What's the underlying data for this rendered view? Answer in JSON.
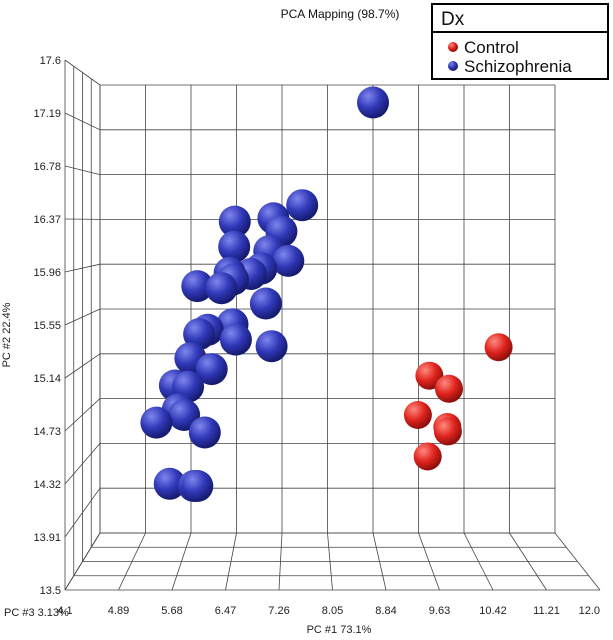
{
  "chart_data": {
    "type": "scatter",
    "title": "PCA Mapping (98.7%)",
    "xlabel": "PC #1 73.1%",
    "ylabel": "PC #2 22.4%",
    "zlabel": "PC #3 3.13%",
    "xlim": [
      4.1,
      12.0
    ],
    "ylim": [
      13.5,
      17.6
    ],
    "x_ticks": [
      "4.1",
      "4.89",
      "5.68",
      "6.47",
      "7.26",
      "8.05",
      "8.84",
      "9.63",
      "10.42",
      "11.21",
      "12.0"
    ],
    "y_ticks": [
      "13.5",
      "13.91",
      "14.32",
      "14.73",
      "15.14",
      "15.55",
      "15.96",
      "16.37",
      "16.78",
      "17.19",
      "17.6"
    ],
    "legend": {
      "title": "Dx",
      "position": "top-right"
    },
    "series": [
      {
        "name": "Control",
        "color": "#e0241e",
        "points": [
          {
            "x": 11.02,
            "y": 15.2
          },
          {
            "x": 9.82,
            "y": 14.94
          },
          {
            "x": 10.16,
            "y": 14.82
          },
          {
            "x": 9.62,
            "y": 14.58
          },
          {
            "x": 10.13,
            "y": 14.47
          },
          {
            "x": 10.14,
            "y": 14.43
          },
          {
            "x": 9.79,
            "y": 14.2
          }
        ]
      },
      {
        "name": "Schizophrenia",
        "color": "#2a31b5",
        "points": [
          {
            "x": 8.84,
            "y": 17.44
          },
          {
            "x": 7.61,
            "y": 16.5
          },
          {
            "x": 7.11,
            "y": 16.38
          },
          {
            "x": 6.44,
            "y": 16.35
          },
          {
            "x": 7.25,
            "y": 16.26
          },
          {
            "x": 6.43,
            "y": 16.12
          },
          {
            "x": 7.04,
            "y": 16.08
          },
          {
            "x": 7.37,
            "y": 15.99
          },
          {
            "x": 6.9,
            "y": 15.92
          },
          {
            "x": 6.72,
            "y": 15.87
          },
          {
            "x": 6.35,
            "y": 15.88
          },
          {
            "x": 6.41,
            "y": 15.82
          },
          {
            "x": 5.79,
            "y": 15.76
          },
          {
            "x": 6.21,
            "y": 15.74
          },
          {
            "x": 6.98,
            "y": 15.6
          },
          {
            "x": 6.4,
            "y": 15.41
          },
          {
            "x": 5.97,
            "y": 15.36
          },
          {
            "x": 5.82,
            "y": 15.32
          },
          {
            "x": 6.46,
            "y": 15.27
          },
          {
            "x": 7.08,
            "y": 15.21
          },
          {
            "x": 5.67,
            "y": 15.1
          },
          {
            "x": 6.04,
            "y": 15.0
          },
          {
            "x": 5.4,
            "y": 14.85
          },
          {
            "x": 5.63,
            "y": 14.84
          },
          {
            "x": 5.45,
            "y": 14.63
          },
          {
            "x": 5.56,
            "y": 14.58
          },
          {
            "x": 5.08,
            "y": 14.51
          },
          {
            "x": 5.92,
            "y": 14.42
          },
          {
            "x": 5.31,
            "y": 13.95
          },
          {
            "x": 5.73,
            "y": 13.93
          },
          {
            "x": 5.79,
            "y": 13.93
          }
        ]
      }
    ]
  }
}
